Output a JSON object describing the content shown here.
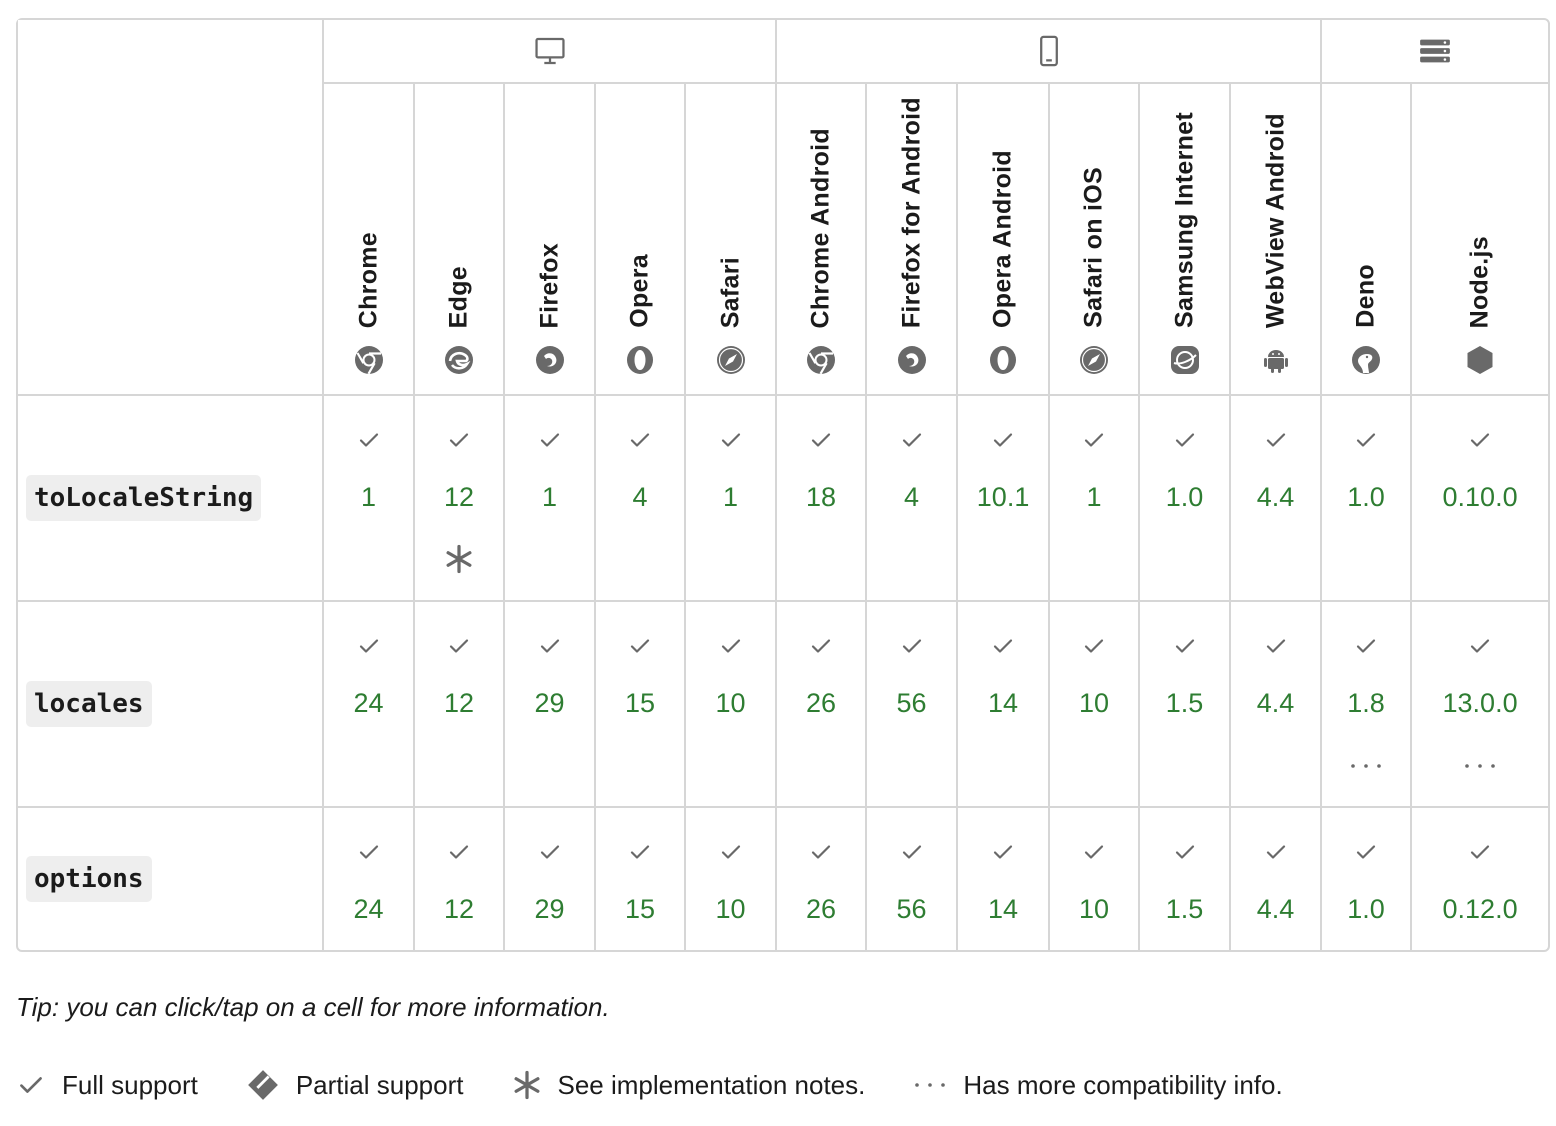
{
  "platforms": [
    {
      "name": "desktop-icon",
      "span": 5
    },
    {
      "name": "mobile-icon",
      "span": 6
    },
    {
      "name": "server-icon",
      "span": 2
    }
  ],
  "browsers": [
    {
      "name": "Chrome",
      "icon": "chrome-icon"
    },
    {
      "name": "Edge",
      "icon": "edge-icon"
    },
    {
      "name": "Firefox",
      "icon": "firefox-icon"
    },
    {
      "name": "Opera",
      "icon": "opera-icon"
    },
    {
      "name": "Safari",
      "icon": "safari-icon"
    },
    {
      "name": "Chrome Android",
      "icon": "chrome-icon"
    },
    {
      "name": "Firefox for Android",
      "icon": "firefox-icon"
    },
    {
      "name": "Opera Android",
      "icon": "opera-icon"
    },
    {
      "name": "Safari on iOS",
      "icon": "safari-icon"
    },
    {
      "name": "Samsung Internet",
      "icon": "samsung-internet-icon"
    },
    {
      "name": "WebView Android",
      "icon": "android-icon"
    },
    {
      "name": "Deno",
      "icon": "deno-icon"
    },
    {
      "name": "Node.js",
      "icon": "nodejs-icon"
    }
  ],
  "features": [
    {
      "name": "toLocaleString",
      "cells": [
        {
          "version": "1"
        },
        {
          "version": "12",
          "note": true
        },
        {
          "version": "1"
        },
        {
          "version": "4"
        },
        {
          "version": "1"
        },
        {
          "version": "18"
        },
        {
          "version": "4"
        },
        {
          "version": "10.1"
        },
        {
          "version": "1"
        },
        {
          "version": "1.0"
        },
        {
          "version": "4.4"
        },
        {
          "version": "1.0"
        },
        {
          "version": "0.10.0"
        }
      ]
    },
    {
      "name": "locales",
      "cells": [
        {
          "version": "24"
        },
        {
          "version": "12"
        },
        {
          "version": "29"
        },
        {
          "version": "15"
        },
        {
          "version": "10"
        },
        {
          "version": "26"
        },
        {
          "version": "56"
        },
        {
          "version": "14"
        },
        {
          "version": "10"
        },
        {
          "version": "1.5"
        },
        {
          "version": "4.4"
        },
        {
          "version": "1.8",
          "more": true
        },
        {
          "version": "13.0.0",
          "more": true
        }
      ]
    },
    {
      "name": "options",
      "cells": [
        {
          "version": "24"
        },
        {
          "version": "12"
        },
        {
          "version": "29"
        },
        {
          "version": "15"
        },
        {
          "version": "10"
        },
        {
          "version": "26"
        },
        {
          "version": "56"
        },
        {
          "version": "14"
        },
        {
          "version": "10"
        },
        {
          "version": "1.5"
        },
        {
          "version": "4.4"
        },
        {
          "version": "1.0"
        },
        {
          "version": "0.12.0"
        }
      ]
    }
  ],
  "tip": "Tip: you can click/tap on a cell for more information.",
  "legend": [
    {
      "icon": "check-icon",
      "label": "Full support"
    },
    {
      "icon": "partial-support-icon",
      "label": "Partial support"
    },
    {
      "icon": "asterisk-icon",
      "label": "See implementation notes."
    },
    {
      "icon": "ellipsis-icon",
      "label": "Has more compatibility info."
    }
  ],
  "colors": {
    "supported": "#2e7d32",
    "border": "#d6d6d6",
    "icon": "#696969"
  }
}
